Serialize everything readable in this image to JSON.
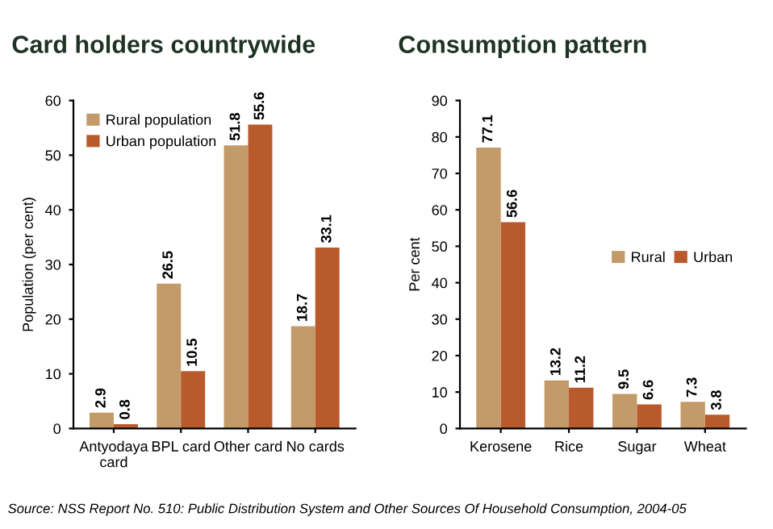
{
  "chart_data": [
    {
      "type": "bar",
      "title": "Card holders countrywide",
      "ylabel": "Population (per cent)",
      "categories": [
        "Antyodaya\ncard",
        "BPL card",
        "Other card",
        "No cards"
      ],
      "series": [
        {
          "name": "Rural population",
          "color": "#c39b6a",
          "values": [
            2.9,
            26.5,
            51.8,
            18.7
          ]
        },
        {
          "name": "Urban population",
          "color": "#b95a2c",
          "values": [
            0.8,
            10.5,
            55.6,
            33.1
          ]
        }
      ],
      "ylim": [
        0,
        60
      ],
      "yticks": [
        0,
        10,
        20,
        30,
        40,
        50,
        60
      ],
      "data_labels": true,
      "legend": "top left",
      "grid": false,
      "annotations": [
        "Source: NSS Report No. 510: Public Distribution System and Other Sources Of Household Consumption, 2004-05"
      ]
    },
    {
      "type": "bar",
      "title": "Consumption pattern",
      "ylabel": "Per cent",
      "categories": [
        "Kerosene",
        "Rice",
        "Sugar",
        "Wheat"
      ],
      "series": [
        {
          "name": "Rural",
          "color": "#c39b6a",
          "values": [
            77.1,
            13.2,
            9.5,
            7.3
          ]
        },
        {
          "name": "Urban",
          "color": "#b95a2c",
          "values": [
            56.6,
            11.2,
            6.6,
            3.8
          ]
        }
      ],
      "ylim": [
        0,
        90
      ],
      "yticks": [
        0,
        10,
        20,
        30,
        40,
        50,
        60,
        70,
        80,
        90
      ],
      "data_labels": true,
      "legend": "right",
      "grid": false
    }
  ]
}
